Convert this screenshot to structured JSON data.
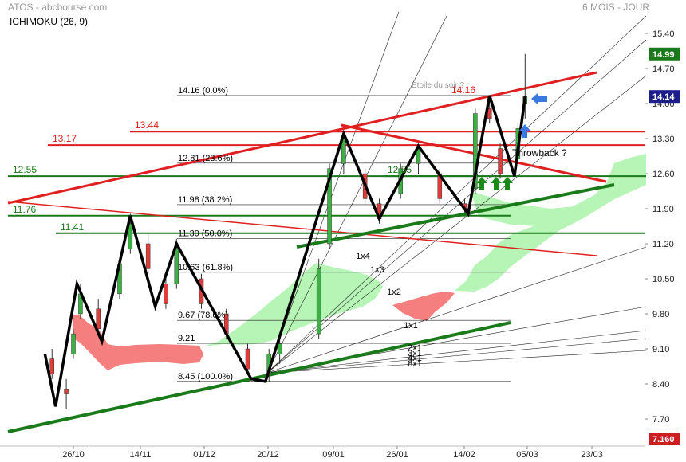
{
  "header": {
    "title": "ATOS - abcbourse.com",
    "period": "6 MOIS - JOUR",
    "indicator": "ICHIMOKU (26, 9)"
  },
  "colors": {
    "up": "#3cb043",
    "down": "#e03c3c",
    "cloud_bull": "#b6f5b6",
    "cloud_bear": "#f57f7f",
    "green_line": "#1a7a1a",
    "red_line": "#e02020",
    "last_price_bg": "#1a7a1a",
    "min_bg": "#cc1f1f"
  },
  "chart_data": {
    "type": "candlestick",
    "title": "ATOS - abcbourse.com",
    "indicator": "ICHIMOKU (26, 9)",
    "y_ticks": [
      15.4,
      14.7,
      14.0,
      13.3,
      12.6,
      11.9,
      11.2,
      10.5,
      9.8,
      9.1,
      8.4,
      7.7
    ],
    "ylim": [
      7.16,
      15.68
    ],
    "x_ticks": [
      "26/10",
      "14/11",
      "01/12",
      "20/12",
      "09/01",
      "26/01",
      "14/02",
      "05/03",
      "23/03"
    ],
    "last_price": "14.99",
    "max_label": "14.14",
    "min_label": "7.160",
    "fibonacci": [
      {
        "label": "14.16  (0.0%)",
        "value": 14.16
      },
      {
        "label": "12.81  (23.6%)",
        "value": 12.81
      },
      {
        "label": "11.98  (38.2%)",
        "value": 11.98
      },
      {
        "label": "11.30  (50.0%)",
        "value": 11.3
      },
      {
        "label": "10.63  (61.8%)",
        "value": 10.63
      },
      {
        "label": "9.67  (78.6%)",
        "value": 9.67
      },
      {
        "label": "9.21",
        "value": 9.21
      },
      {
        "label": "8.45  (100.0%)",
        "value": 8.45
      }
    ],
    "horizontal_levels": [
      {
        "label": "13.44",
        "value": 13.44,
        "color": "red"
      },
      {
        "label": "13.17",
        "value": 13.17,
        "color": "red"
      },
      {
        "label": "12.55",
        "value": 12.55,
        "color": "green"
      },
      {
        "label": "12.55",
        "value": 12.55,
        "color": "green"
      },
      {
        "label": "11.76",
        "value": 11.76,
        "color": "green"
      },
      {
        "label": "11.41",
        "value": 11.41,
        "color": "green"
      }
    ],
    "gann_labels": [
      "1x4",
      "1x3",
      "1x2",
      "1x1",
      "2x1",
      "3x1",
      "4x1",
      "8x1"
    ],
    "annotations": [
      "Etoile du soir ?",
      "14.16",
      "Throwback ?"
    ],
    "zigzag": [
      {
        "date": "2022-10-18",
        "value": 9.0
      },
      {
        "date": "2022-10-21",
        "value": 7.95
      },
      {
        "date": "2022-10-27",
        "value": 10.4
      },
      {
        "date": "2022-11-03",
        "value": 9.25
      },
      {
        "date": "2022-11-11",
        "value": 11.76
      },
      {
        "date": "2022-11-18",
        "value": 9.95
      },
      {
        "date": "2022-11-24",
        "value": 11.2
      },
      {
        "date": "2022-12-15",
        "value": 8.5
      },
      {
        "date": "2022-12-19",
        "value": 8.45
      },
      {
        "date": "2023-01-10",
        "value": 13.4
      },
      {
        "date": "2023-01-20",
        "value": 11.7
      },
      {
        "date": "2023-01-31",
        "value": 13.15
      },
      {
        "date": "2023-02-14",
        "value": 11.8
      },
      {
        "date": "2023-02-20",
        "value": 14.16
      },
      {
        "date": "2023-02-27",
        "value": 12.55
      },
      {
        "date": "2023-03-02",
        "value": 14.14
      }
    ],
    "candles_ohlc_approx": [
      {
        "date": "2022-10-20",
        "o": 8.9,
        "h": 9.1,
        "l": 8.5,
        "c": 8.6
      },
      {
        "date": "2022-10-24",
        "o": 8.3,
        "h": 8.5,
        "l": 7.9,
        "c": 8.2
      },
      {
        "date": "2022-10-26",
        "o": 9.0,
        "h": 9.5,
        "l": 8.9,
        "c": 9.4
      },
      {
        "date": "2022-10-28",
        "o": 9.8,
        "h": 10.4,
        "l": 9.7,
        "c": 10.2
      },
      {
        "date": "2022-11-02",
        "o": 9.9,
        "h": 10.1,
        "l": 9.4,
        "c": 9.5
      },
      {
        "date": "2022-11-08",
        "o": 10.2,
        "h": 10.9,
        "l": 10.1,
        "c": 10.8
      },
      {
        "date": "2022-11-11",
        "o": 11.1,
        "h": 11.8,
        "l": 11.0,
        "c": 11.6
      },
      {
        "date": "2022-11-16",
        "o": 11.2,
        "h": 11.4,
        "l": 10.6,
        "c": 10.7
      },
      {
        "date": "2022-11-21",
        "o": 10.4,
        "h": 10.5,
        "l": 9.9,
        "c": 10.0
      },
      {
        "date": "2022-11-24",
        "o": 10.4,
        "h": 11.3,
        "l": 10.3,
        "c": 11.1
      },
      {
        "date": "2022-12-01",
        "o": 10.5,
        "h": 10.6,
        "l": 9.9,
        "c": 10.0
      },
      {
        "date": "2022-12-08",
        "o": 9.8,
        "h": 9.9,
        "l": 9.3,
        "c": 9.4
      },
      {
        "date": "2022-12-14",
        "o": 9.1,
        "h": 9.2,
        "l": 8.6,
        "c": 8.7
      },
      {
        "date": "2022-12-20",
        "o": 8.6,
        "h": 9.1,
        "l": 8.45,
        "c": 9.0
      },
      {
        "date": "2022-12-23",
        "o": 9.0,
        "h": 9.3,
        "l": 8.8,
        "c": 9.2
      },
      {
        "date": "2023-01-03",
        "o": 9.4,
        "h": 10.9,
        "l": 9.3,
        "c": 10.7
      },
      {
        "date": "2023-01-06",
        "o": 11.2,
        "h": 12.8,
        "l": 11.1,
        "c": 12.7
      },
      {
        "date": "2023-01-10",
        "o": 12.8,
        "h": 13.4,
        "l": 12.6,
        "c": 13.3
      },
      {
        "date": "2023-01-16",
        "o": 12.6,
        "h": 12.7,
        "l": 12.0,
        "c": 12.1
      },
      {
        "date": "2023-01-20",
        "o": 12.0,
        "h": 12.1,
        "l": 11.6,
        "c": 11.7
      },
      {
        "date": "2023-01-26",
        "o": 12.2,
        "h": 12.8,
        "l": 12.1,
        "c": 12.7
      },
      {
        "date": "2023-01-31",
        "o": 12.8,
        "h": 13.2,
        "l": 12.6,
        "c": 13.1
      },
      {
        "date": "2023-02-06",
        "o": 12.6,
        "h": 12.7,
        "l": 12.0,
        "c": 12.1
      },
      {
        "date": "2023-02-13",
        "o": 12.0,
        "h": 12.1,
        "l": 11.8,
        "c": 11.9
      },
      {
        "date": "2023-02-16",
        "o": 12.3,
        "h": 13.9,
        "l": 12.2,
        "c": 13.8
      },
      {
        "date": "2023-02-20",
        "o": 13.9,
        "h": 14.16,
        "l": 13.6,
        "c": 13.7
      },
      {
        "date": "2023-02-23",
        "o": 13.1,
        "h": 13.2,
        "l": 12.5,
        "c": 12.6
      },
      {
        "date": "2023-02-28",
        "o": 12.9,
        "h": 13.6,
        "l": 12.8,
        "c": 13.5
      },
      {
        "date": "2023-03-02",
        "o": 14.0,
        "h": 14.99,
        "l": 13.7,
        "c": 14.14
      }
    ]
  }
}
